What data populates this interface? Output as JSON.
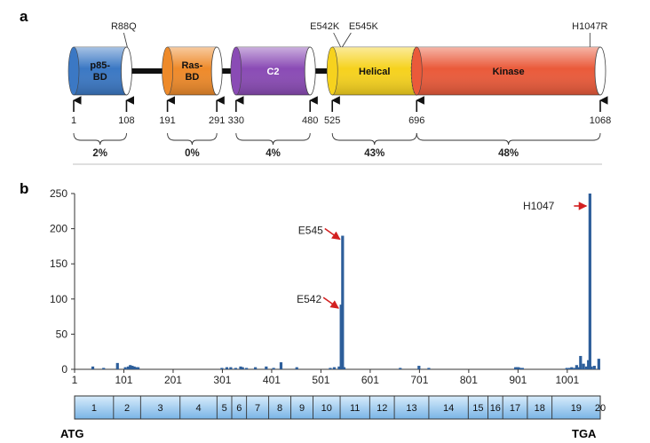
{
  "panel_a": {
    "label": "a",
    "domains": [
      {
        "name": "p85-\nBD",
        "start": 1,
        "end": 108,
        "color": "#3b78c4"
      },
      {
        "name": "Ras-\nBD",
        "start": 191,
        "end": 291,
        "color": "#ee8a2a"
      },
      {
        "name": "C2",
        "start": 330,
        "end": 480,
        "color": "#8a4bb5"
      },
      {
        "name": "Helical",
        "start": 525,
        "end": 696,
        "color": "#f6d21e"
      },
      {
        "name": "Kinase",
        "start": 696,
        "end": 1068,
        "color": "#ea5a3a"
      }
    ],
    "mutations": [
      {
        "label": "R88Q",
        "position": 88
      },
      {
        "label": "E542K",
        "position": 542
      },
      {
        "label": "E545K",
        "position": 545
      },
      {
        "label": "H1047R",
        "position": 1047
      }
    ],
    "position_labels": [
      "1",
      "108",
      "191",
      "291",
      "330",
      "480",
      "525",
      "696",
      "1068"
    ],
    "percentages": [
      {
        "label": "2%",
        "start": 1,
        "end": 108
      },
      {
        "label": "0%",
        "start": 191,
        "end": 291
      },
      {
        "label": "4%",
        "start": 330,
        "end": 480
      },
      {
        "label": "43%",
        "start": 525,
        "end": 696
      },
      {
        "label": "48%",
        "start": 696,
        "end": 1068
      }
    ]
  },
  "panel_b": {
    "label": "b",
    "annotations": [
      {
        "label": "E545",
        "x": 545,
        "y": 190
      },
      {
        "label": "E542",
        "x": 542,
        "y": 92
      },
      {
        "label": "H1047",
        "x": 1047,
        "y": 250
      }
    ],
    "exons": [
      "1",
      "2",
      "3",
      "4",
      "5",
      "6",
      "7",
      "8",
      "9",
      "10",
      "11",
      "12",
      "13",
      "14",
      "15",
      "16",
      "17",
      "18",
      "19",
      "20"
    ],
    "exon_bounds": [
      1,
      80,
      135,
      215,
      290,
      320,
      350,
      395,
      440,
      485,
      540,
      600,
      650,
      720,
      800,
      840,
      870,
      920,
      970,
      1068
    ],
    "start_label": "ATG",
    "end_label": "TGA"
  },
  "chart_data": {
    "type": "bar",
    "xlim": [
      1,
      1068
    ],
    "ylim": [
      0,
      250
    ],
    "xticks": [
      "1",
      "101",
      "201",
      "301",
      "401",
      "501",
      "601",
      "701",
      "801",
      "901",
      "1001"
    ],
    "yticks": [
      "0",
      "50",
      "100",
      "150",
      "200",
      "250"
    ],
    "color": "#2d5e9a",
    "x": [
      38,
      60,
      88,
      104,
      110,
      114,
      118,
      122,
      126,
      130,
      300,
      310,
      318,
      328,
      338,
      342,
      350,
      368,
      390,
      405,
      420,
      452,
      520,
      528,
      538,
      542,
      545,
      548,
      662,
      700,
      720,
      896,
      899,
      902,
      905,
      910,
      1000,
      1006,
      1010,
      1016,
      1020,
      1024,
      1028,
      1034,
      1040,
      1044,
      1047,
      1050,
      1056,
      1065
    ],
    "y": [
      4,
      2,
      9,
      3,
      4,
      6,
      5,
      4,
      3,
      3,
      2,
      3,
      3,
      2,
      4,
      3,
      2,
      3,
      4,
      2,
      10,
      3,
      2,
      3,
      4,
      92,
      190,
      3,
      2,
      5,
      2,
      3,
      3,
      3,
      2,
      2,
      2,
      2,
      3,
      2,
      6,
      3,
      19,
      8,
      4,
      13,
      250,
      4,
      5,
      15
    ]
  }
}
